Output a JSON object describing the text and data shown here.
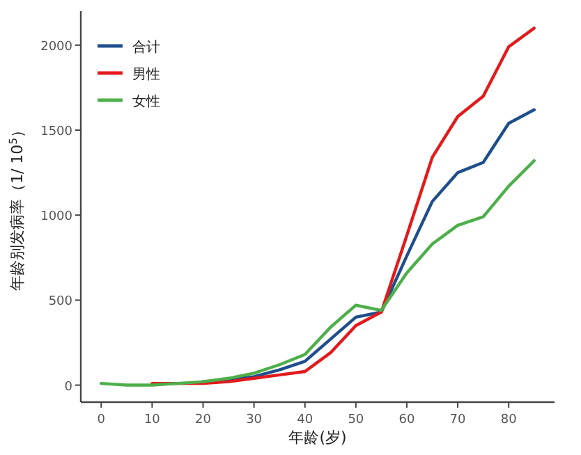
{
  "chart_data": {
    "type": "line",
    "xlabel": "年龄(岁)",
    "ylabel": "年龄别发病率（1/ 10$^{5}$）",
    "x": [
      0,
      5,
      10,
      15,
      20,
      25,
      30,
      35,
      40,
      45,
      50,
      55,
      60,
      65,
      70,
      75,
      80,
      85
    ],
    "series": [
      {
        "name": "合计",
        "color": "#1f4e8c",
        "values": [
          null,
          null,
          null,
          null,
          20,
          30,
          50,
          90,
          140,
          270,
          400,
          430,
          760,
          1080,
          1250,
          1310,
          1540,
          1620
        ]
      },
      {
        "name": "男性",
        "color": "#e31a1c",
        "values": [
          null,
          null,
          10,
          10,
          10,
          20,
          40,
          60,
          80,
          190,
          350,
          430,
          880,
          1340,
          1580,
          1700,
          1990,
          2100
        ]
      },
      {
        "name": "女性",
        "color": "#4daf4a",
        "values": [
          10,
          0,
          0,
          10,
          20,
          40,
          70,
          120,
          180,
          340,
          470,
          440,
          660,
          830,
          940,
          990,
          1170,
          1320
        ]
      }
    ],
    "xlim": [
      -4,
      89
    ],
    "ylim": [
      -100,
      2200
    ],
    "xticks": [
      0,
      10,
      20,
      30,
      40,
      50,
      60,
      70,
      80
    ],
    "yticks": [
      0,
      500,
      1000,
      1500,
      2000
    ],
    "grid": false,
    "legend": "top left",
    "marker": "none",
    "line_style": "solid"
  }
}
